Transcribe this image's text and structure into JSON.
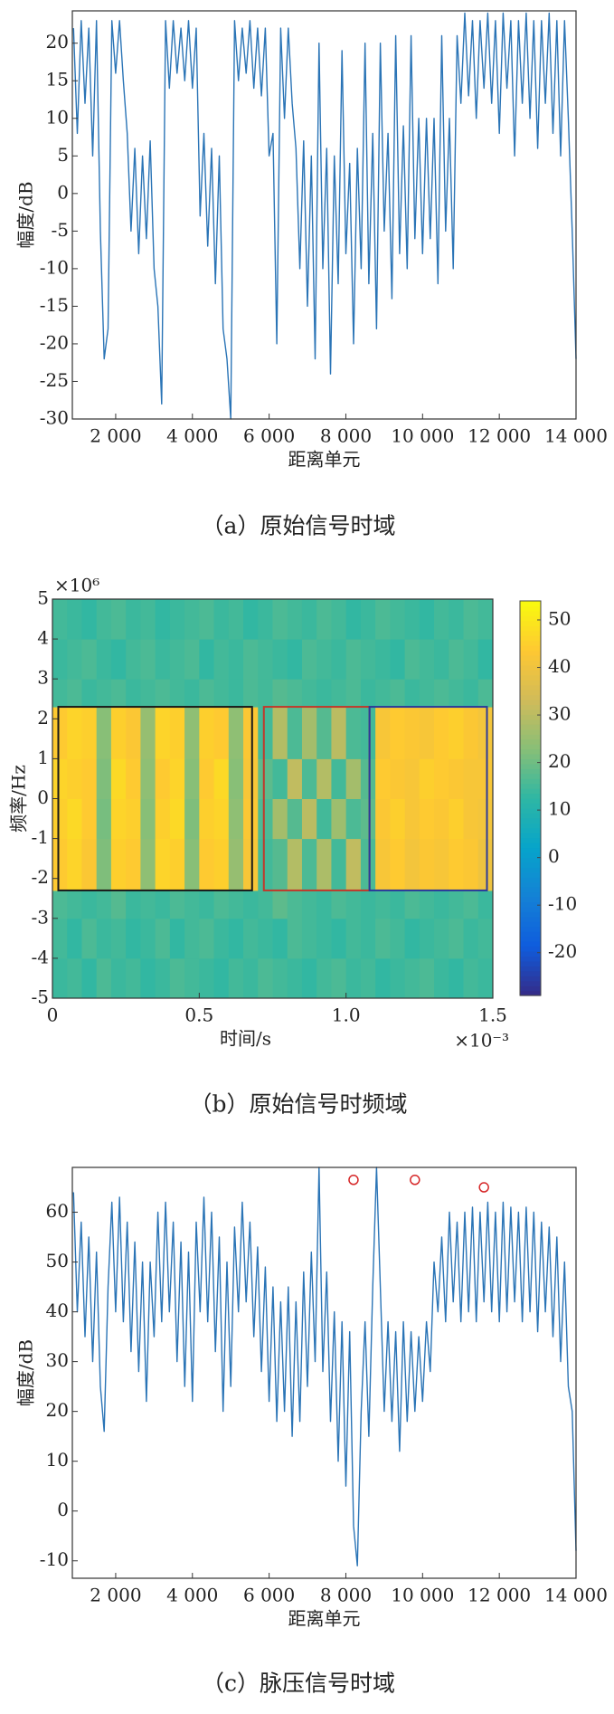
{
  "chart_data": [
    {
      "type": "line",
      "ylabel": "幅度/dB",
      "xlabel": "距离单元",
      "caption": "（a）原始信号时域",
      "color": "#2a74b6",
      "xlim": [
        870,
        14000
      ],
      "ylim": [
        -30,
        24.3
      ],
      "xticks": [
        {
          "value": 2000,
          "label": "2 000"
        },
        {
          "value": 4000,
          "label": "4 000"
        },
        {
          "value": 6000,
          "label": "6 000"
        },
        {
          "value": 8000,
          "label": "8 000"
        },
        {
          "value": 10000,
          "label": "10 000"
        },
        {
          "value": 12000,
          "label": "12 000"
        },
        {
          "value": 14000,
          "label": "14 000"
        }
      ],
      "yticks": [
        -30,
        -25,
        -20,
        -15,
        -10,
        -5,
        0,
        5,
        10,
        15,
        20
      ],
      "x": [
        900,
        1000,
        1100,
        1200,
        1300,
        1400,
        1500,
        1600,
        1700,
        1800,
        1900,
        2000,
        2100,
        2200,
        2300,
        2400,
        2500,
        2600,
        2700,
        2800,
        2900,
        3000,
        3100,
        3200,
        3300,
        3400,
        3500,
        3600,
        3700,
        3800,
        3900,
        4000,
        4100,
        4200,
        4300,
        4400,
        4500,
        4600,
        4700,
        4800,
        4900,
        5000,
        5100,
        5200,
        5300,
        5400,
        5500,
        5600,
        5700,
        5800,
        5900,
        6000,
        6100,
        6200,
        6300,
        6400,
        6500,
        6600,
        6700,
        6800,
        6900,
        7000,
        7100,
        7200,
        7300,
        7400,
        7500,
        7600,
        7700,
        7800,
        7900,
        8000,
        8100,
        8200,
        8300,
        8400,
        8500,
        8600,
        8700,
        8800,
        8900,
        9000,
        9100,
        9200,
        9300,
        9400,
        9500,
        9600,
        9700,
        9800,
        9900,
        10000,
        10100,
        10200,
        10300,
        10400,
        10500,
        10600,
        10700,
        10800,
        10900,
        11000,
        11100,
        11200,
        11300,
        11400,
        11500,
        11600,
        11700,
        11800,
        11900,
        12000,
        12100,
        12200,
        12300,
        12400,
        12500,
        12600,
        12700,
        12800,
        12900,
        13000,
        13100,
        13200,
        13300,
        13400,
        13500,
        13600,
        13700,
        13800,
        13900,
        14000
      ],
      "values": [
        22,
        8,
        23,
        12,
        22,
        5,
        23,
        -5,
        -22,
        -18,
        23,
        16,
        23,
        15,
        8,
        -5,
        6,
        -8,
        5,
        -6,
        7,
        -10,
        -15,
        -28,
        23,
        14,
        23,
        16,
        22,
        15,
        23,
        14,
        22,
        -3,
        8,
        -7,
        6,
        -12,
        5,
        -18,
        -22,
        -30,
        23,
        15,
        22,
        16,
        23,
        14,
        22,
        13,
        22,
        5,
        8,
        -20,
        22,
        10,
        22,
        12,
        6,
        -10,
        7,
        -15,
        5,
        -22,
        20,
        -10,
        6,
        -24,
        5,
        -12,
        19,
        -8,
        4,
        -20,
        6,
        -10,
        20,
        -12,
        8,
        -18,
        20,
        -5,
        8,
        -14,
        21,
        -8,
        9,
        -10,
        21,
        -6,
        10,
        -8,
        10,
        -6,
        10,
        -12,
        21,
        -5,
        10,
        -10,
        21,
        12,
        24,
        13,
        23,
        10,
        23,
        14,
        24,
        12,
        23,
        8,
        24,
        14,
        23,
        5,
        23,
        12,
        24,
        10,
        23,
        6,
        23,
        12,
        24,
        8,
        23,
        5,
        23,
        10,
        -5,
        -22
      ]
    },
    {
      "type": "heatmap",
      "ylabel": "频率/Hz",
      "xlabel": "时间/s",
      "caption": "（b）原始信号时频域",
      "x_multiplier": "×10⁻³",
      "y_multiplier": "×10⁶",
      "xlim": [
        0,
        1.5
      ],
      "ylim": [
        -5,
        5
      ],
      "xticks": [
        0,
        0.5,
        {
          "value": 1,
          "label": "1.0"
        },
        1.5
      ],
      "yticks": [
        -5,
        -4,
        -3,
        -2,
        -1,
        0,
        1,
        2,
        3,
        4,
        5
      ],
      "clim": [
        -29,
        54
      ],
      "cticks": [
        -20,
        -10,
        0,
        10,
        20,
        30,
        40,
        50
      ],
      "x_edges": [
        0,
        0.05,
        0.1,
        0.15,
        0.2,
        0.25,
        0.3,
        0.35,
        0.4,
        0.45,
        0.5,
        0.55,
        0.6,
        0.65,
        0.7,
        0.75,
        0.8,
        0.85,
        0.9,
        0.95,
        1,
        1.05,
        1.1,
        1.15,
        1.2,
        1.25,
        1.3,
        1.35,
        1.4,
        1.45,
        1.5
      ],
      "y_edges": [
        -5,
        -4,
        -3,
        -2.3,
        -1,
        0,
        1,
        2.3,
        3,
        4,
        5
      ],
      "z": [
        [
          14,
          15,
          13,
          16,
          14,
          15,
          13,
          14,
          16,
          15,
          14,
          13,
          15,
          14,
          16,
          15,
          14,
          13,
          15,
          16,
          14,
          15,
          13,
          14,
          15,
          16,
          14,
          13,
          15,
          14
        ],
        [
          15,
          13,
          16,
          14,
          15,
          13,
          14,
          16,
          13,
          15,
          16,
          14,
          13,
          15,
          14,
          13,
          16,
          15,
          14,
          13,
          15,
          14,
          16,
          15,
          13,
          14,
          15,
          16,
          14,
          15
        ],
        [
          16,
          15,
          14,
          15,
          17,
          14,
          15,
          14,
          16,
          15,
          14,
          16,
          15,
          14,
          15,
          18,
          16,
          15,
          14,
          16,
          15,
          14,
          15,
          14,
          16,
          15,
          14,
          15,
          16,
          14
        ],
        [
          44,
          46,
          43,
          22,
          45,
          44,
          24,
          46,
          45,
          23,
          44,
          45,
          25,
          42,
          15,
          17,
          29,
          16,
          28,
          15,
          31,
          16,
          42,
          44,
          41,
          43,
          42,
          44,
          43,
          40
        ],
        [
          45,
          47,
          44,
          21,
          46,
          45,
          23,
          45,
          47,
          22,
          45,
          46,
          24,
          43,
          16,
          27,
          17,
          30,
          15,
          26,
          16,
          18,
          43,
          45,
          42,
          44,
          43,
          45,
          42,
          41
        ],
        [
          46,
          45,
          44,
          22,
          47,
          44,
          24,
          44,
          46,
          23,
          44,
          47,
          23,
          42,
          18,
          15,
          31,
          16,
          29,
          15,
          27,
          17,
          44,
          43,
          42,
          45,
          44,
          43,
          42,
          42
        ],
        [
          44,
          46,
          45,
          23,
          45,
          43,
          25,
          46,
          45,
          24,
          45,
          44,
          24,
          43,
          15,
          29,
          16,
          27,
          17,
          30,
          16,
          15,
          42,
          44,
          43,
          42,
          44,
          45,
          43,
          41
        ],
        [
          15,
          16,
          14,
          15,
          16,
          14,
          15,
          16,
          15,
          14,
          16,
          15,
          14,
          16,
          15,
          17,
          16,
          15,
          14,
          15,
          16,
          14,
          15,
          16,
          14,
          15,
          16,
          15,
          14,
          16
        ],
        [
          14,
          15,
          16,
          14,
          13,
          15,
          16,
          14,
          15,
          16,
          13,
          15,
          14,
          16,
          15,
          14,
          13,
          16,
          15,
          14,
          16,
          15,
          14,
          13,
          16,
          15,
          14,
          16,
          15,
          13
        ],
        [
          15,
          14,
          13,
          15,
          16,
          14,
          15,
          13,
          14,
          15,
          16,
          14,
          15,
          13,
          14,
          16,
          15,
          14,
          16,
          15,
          13,
          14,
          16,
          15,
          14,
          13,
          15,
          14,
          16,
          15
        ]
      ],
      "regions": [
        {
          "x": [
            0.02,
            0.68
          ],
          "y": [
            -2.3,
            2.3
          ],
          "color": "#1a1a1a"
        },
        {
          "x": [
            0.72,
            1.08
          ],
          "y": [
            -2.3,
            2.3
          ],
          "color": "#c0392b"
        },
        {
          "x": [
            1.08,
            1.48
          ],
          "y": [
            -2.3,
            2.3
          ],
          "color": "#2c3a9a"
        }
      ]
    },
    {
      "type": "line",
      "ylabel": "幅度/dB",
      "xlabel": "距离单元",
      "caption": "（c）脉压信号时域",
      "color": "#2a74b6",
      "xlim": [
        870,
        14000
      ],
      "ylim": [
        -13.5,
        69
      ],
      "xticks": [
        {
          "value": 2000,
          "label": "2 000"
        },
        {
          "value": 4000,
          "label": "4 000"
        },
        {
          "value": 6000,
          "label": "6 000"
        },
        {
          "value": 8000,
          "label": "8 000"
        },
        {
          "value": 10000,
          "label": "10 000"
        },
        {
          "value": 12000,
          "label": "12 000"
        },
        {
          "value": 14000,
          "label": "14 000"
        }
      ],
      "yticks": [
        -10,
        0,
        10,
        20,
        30,
        40,
        50,
        60
      ],
      "x": [
        900,
        1000,
        1100,
        1200,
        1300,
        1400,
        1500,
        1600,
        1700,
        1800,
        1900,
        2000,
        2100,
        2200,
        2300,
        2400,
        2500,
        2600,
        2700,
        2800,
        2900,
        3000,
        3100,
        3200,
        3300,
        3400,
        3500,
        3600,
        3700,
        3800,
        3900,
        4000,
        4100,
        4200,
        4300,
        4400,
        4500,
        4600,
        4700,
        4800,
        4900,
        5000,
        5100,
        5200,
        5300,
        5400,
        5500,
        5600,
        5700,
        5800,
        5900,
        6000,
        6100,
        6200,
        6300,
        6400,
        6500,
        6600,
        6700,
        6800,
        6900,
        7000,
        7100,
        7200,
        7300,
        7400,
        7500,
        7600,
        7700,
        7800,
        7900,
        8000,
        8100,
        8200,
        8300,
        8400,
        8500,
        8600,
        8700,
        8800,
        8900,
        9000,
        9100,
        9200,
        9300,
        9400,
        9500,
        9600,
        9700,
        9800,
        9900,
        10000,
        10100,
        10200,
        10300,
        10400,
        10500,
        10600,
        10700,
        10800,
        10900,
        11000,
        11100,
        11200,
        11300,
        11400,
        11500,
        11600,
        11700,
        11800,
        11900,
        12000,
        12100,
        12200,
        12300,
        12400,
        12500,
        12600,
        12700,
        12800,
        12900,
        13000,
        13100,
        13200,
        13300,
        13400,
        13500,
        13600,
        13700,
        13800,
        13900,
        14000
      ],
      "values": [
        64,
        40,
        58,
        35,
        55,
        30,
        52,
        25,
        16,
        45,
        62,
        40,
        63,
        38,
        58,
        32,
        54,
        28,
        50,
        22,
        50,
        35,
        60,
        38,
        62,
        40,
        58,
        30,
        54,
        25,
        52,
        22,
        58,
        40,
        63,
        38,
        60,
        32,
        55,
        20,
        50,
        25,
        57,
        40,
        62,
        42,
        58,
        35,
        53,
        28,
        49,
        22,
        45,
        18,
        42,
        20,
        45,
        15,
        42,
        18,
        48,
        25,
        52,
        30,
        69,
        28,
        48,
        18,
        40,
        10,
        38,
        5,
        36,
        -3,
        -11,
        20,
        38,
        15,
        45,
        69,
        45,
        20,
        38,
        18,
        36,
        12,
        38,
        18,
        36,
        20,
        35,
        22,
        38,
        28,
        50,
        40,
        55,
        38,
        60,
        42,
        58,
        38,
        60,
        40,
        61,
        38,
        60,
        42,
        62,
        40,
        60,
        38,
        62,
        40,
        61,
        42,
        60,
        38,
        61,
        40,
        60,
        36,
        58,
        40,
        57,
        35,
        55,
        30,
        50,
        25,
        20,
        -8
      ],
      "markers": {
        "x": [
          8200,
          9800,
          11600
        ],
        "values": [
          66.5,
          66.5,
          65
        ],
        "color": "#d62728"
      }
    }
  ]
}
